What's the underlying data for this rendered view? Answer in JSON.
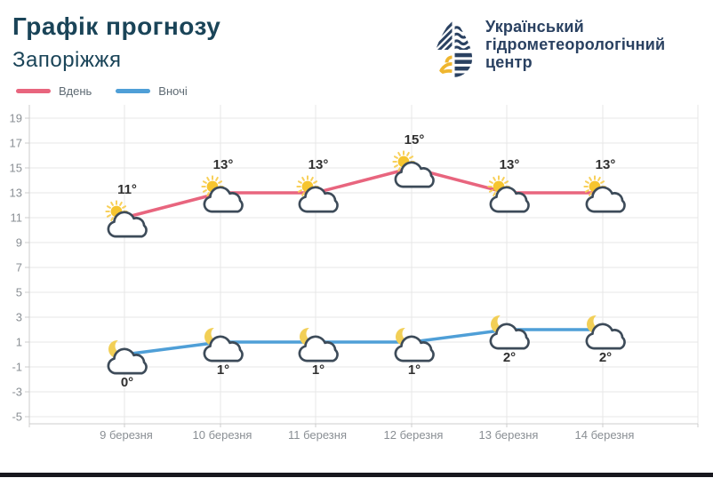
{
  "header": {
    "title": "Графік прогнозу",
    "subtitle": "Запоріжжя"
  },
  "logo": {
    "icon": "hydromet-drop-icon",
    "lines": [
      "Український",
      "гідрометеорологічний",
      "центр"
    ]
  },
  "legend": {
    "items": [
      {
        "label": "Вдень",
        "color": "#e8657e"
      },
      {
        "label": "Вночі",
        "color": "#4f9fd7"
      }
    ]
  },
  "chart_data": {
    "type": "line",
    "categories": [
      "9 березня",
      "10 березня",
      "11 березня",
      "12 березня",
      "13 березня",
      "14 березня"
    ],
    "series": [
      {
        "name": "Вдень",
        "color": "#e8657e",
        "icon": "sun-behind-cloud",
        "values": [
          11,
          13,
          13,
          15,
          13,
          13
        ],
        "point_labels": [
          "11°",
          "13°",
          "13°",
          "15°",
          "13°",
          "13°"
        ],
        "label_position": "above"
      },
      {
        "name": "Вночі",
        "color": "#4f9fd7",
        "icon": "moon-behind-cloud",
        "values": [
          0,
          1,
          1,
          1,
          2,
          2
        ],
        "point_labels": [
          "0°",
          "1°",
          "1°",
          "1°",
          "2°",
          "2°"
        ],
        "label_position": "below"
      }
    ],
    "yticks": [
      19,
      17,
      15,
      13,
      11,
      9,
      7,
      5,
      3,
      1,
      -1,
      -3,
      -5
    ],
    "ylim": [
      -5,
      19
    ],
    "xlabel": "",
    "ylabel": "",
    "grid": true,
    "legend_position": "top-left"
  },
  "colors": {
    "background": "#ffffff",
    "title": "#1a4458",
    "logo_text": "#2a4161",
    "logo_navy": "#2a4161",
    "logo_yellow": "#efb62f",
    "legend_text": "#5e6a73",
    "axis_text": "#8a8f94",
    "point_label": "#2f2f2f",
    "grid": "#e7e7e7",
    "axis_line": "#cccccc",
    "day_line": "#e8657e",
    "night_line": "#4f9fd7",
    "sun_core": "#f6c52f",
    "sun_rays": "#f8d05a",
    "moon": "#f2cf56",
    "cloud_stroke": "#3d4b59",
    "cloud_fill": "#ffffff",
    "footer_bar": "#17171d"
  }
}
